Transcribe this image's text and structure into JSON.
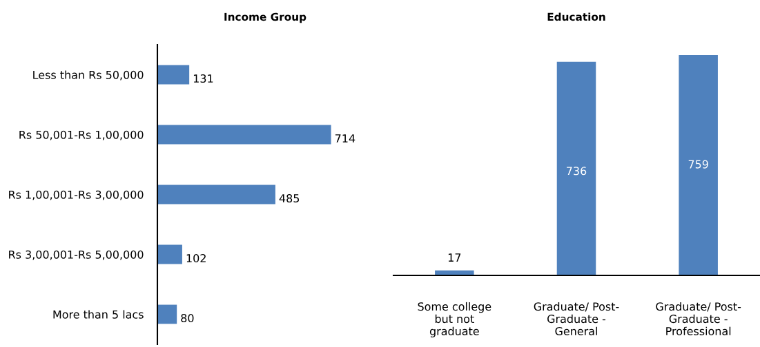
{
  "chart_data": [
    {
      "type": "bar",
      "title": "Income Group",
      "orientation": "horizontal",
      "data_labels": true,
      "categories": [
        "Less than Rs 50,000",
        "Rs 50,001-Rs 1,00,000",
        "Rs 1,00,001-Rs 3,00,000",
        "Rs 3,00,001-Rs 5,00,000",
        "More than 5 lacs"
      ],
      "values": [
        131,
        714,
        485,
        102,
        80
      ],
      "color": "#4f81bd"
    },
    {
      "type": "bar",
      "title": "Education",
      "data_labels": true,
      "categories": [
        "Some college\nbut not\ngraduate",
        "Graduate/ Post-\nGraduate -\nGeneral",
        "Graduate/ Post-\nGraduate -\nProfessional"
      ],
      "values": [
        17,
        736,
        759
      ],
      "color": "#4f81bd"
    }
  ]
}
